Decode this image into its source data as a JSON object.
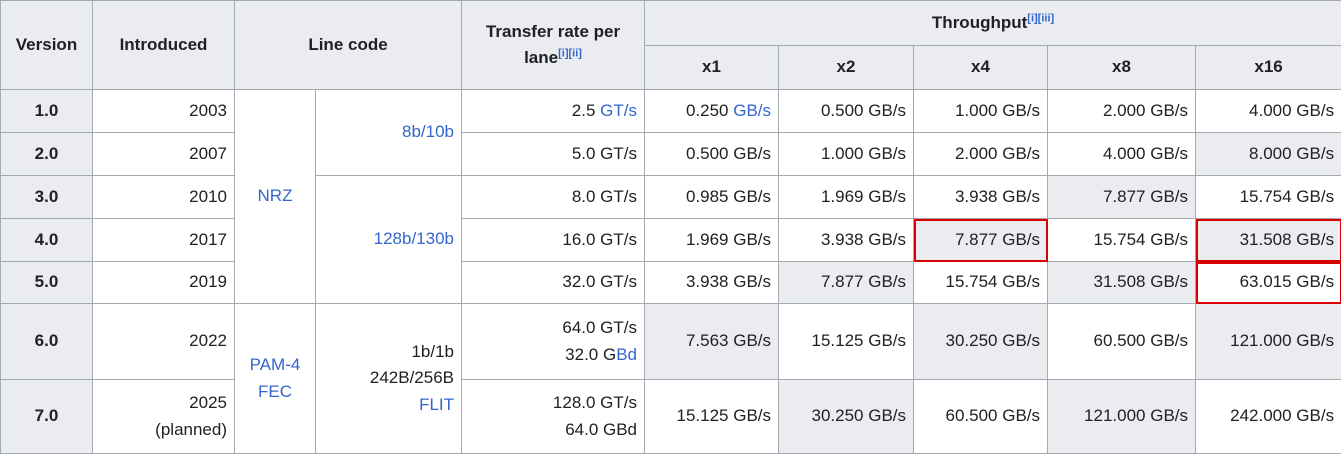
{
  "headers": {
    "version": "Version",
    "introduced": "Introduced",
    "line_code": "Line code",
    "transfer_rate_line1": "Transfer rate per",
    "transfer_rate_line2": "lane",
    "transfer_rate_note": "[i][ii]",
    "throughput": "Throughput",
    "throughput_note": "[i][iii]",
    "lanes": [
      "x1",
      "x2",
      "x4",
      "x8",
      "x16"
    ]
  },
  "line_codes": {
    "nrz": "NRZ",
    "pam4": "PAM-4",
    "fec": "FEC",
    "enc_8b10b": "8b/10b",
    "enc_128b130b": "128b/130b",
    "enc_flit_1": "1b/1b",
    "enc_flit_2": "242B/256B",
    "enc_flit_3": "FLIT"
  },
  "rows": [
    {
      "version": "1.0",
      "introduced": "2003",
      "rate": "2.5",
      "rate_unit": "GT/s",
      "x1": "0.250",
      "x1_unit": "GB/s",
      "x2": "0.500 GB/s",
      "x4": "1.000 GB/s",
      "x8": "2.000 GB/s",
      "x16": "4.000 GB/s"
    },
    {
      "version": "2.0",
      "introduced": "2007",
      "rate": "5.0 GT/s",
      "x1": "0.500 GB/s",
      "x2": "1.000 GB/s",
      "x4": "2.000 GB/s",
      "x8": "4.000 GB/s",
      "x16": "8.000 GB/s"
    },
    {
      "version": "3.0",
      "introduced": "2010",
      "rate": "8.0 GT/s",
      "x1": "0.985 GB/s",
      "x2": "1.969 GB/s",
      "x4": "3.938 GB/s",
      "x8": "7.877 GB/s",
      "x16": "15.754 GB/s"
    },
    {
      "version": "4.0",
      "introduced": "2017",
      "rate": "16.0 GT/s",
      "x1": "1.969 GB/s",
      "x2": "3.938 GB/s",
      "x4": "7.877 GB/s",
      "x8": "15.754 GB/s",
      "x16": "31.508 GB/s"
    },
    {
      "version": "5.0",
      "introduced": "2019",
      "rate": "32.0 GT/s",
      "x1": "3.938 GB/s",
      "x2": "7.877 GB/s",
      "x4": "15.754 GB/s",
      "x8": "31.508 GB/s",
      "x16": "63.015 GB/s"
    },
    {
      "version": "6.0",
      "introduced": "2022",
      "rate": "64.0 GT/s",
      "rate_baud": "32.0 G",
      "rate_baud_unit": "Bd",
      "x1": "7.563 GB/s",
      "x2": "15.125 GB/s",
      "x4": "30.250 GB/s",
      "x8": "60.500 GB/s",
      "x16": "121.000 GB/s"
    },
    {
      "version": "7.0",
      "introduced": "2025",
      "introduced_note": "(planned)",
      "rate": "128.0 GT/s",
      "rate_baud": "64.0 GBd",
      "x1": "15.125 GB/s",
      "x2": "30.250 GB/s",
      "x4": "60.500 GB/s",
      "x8": "121.000 GB/s",
      "x16": "242.000 GB/s"
    }
  ],
  "colors": {
    "header_bg": "#eaecf0",
    "border": "#a2a9b1",
    "link": "#3366cc",
    "highlight_box": "#d90000"
  }
}
